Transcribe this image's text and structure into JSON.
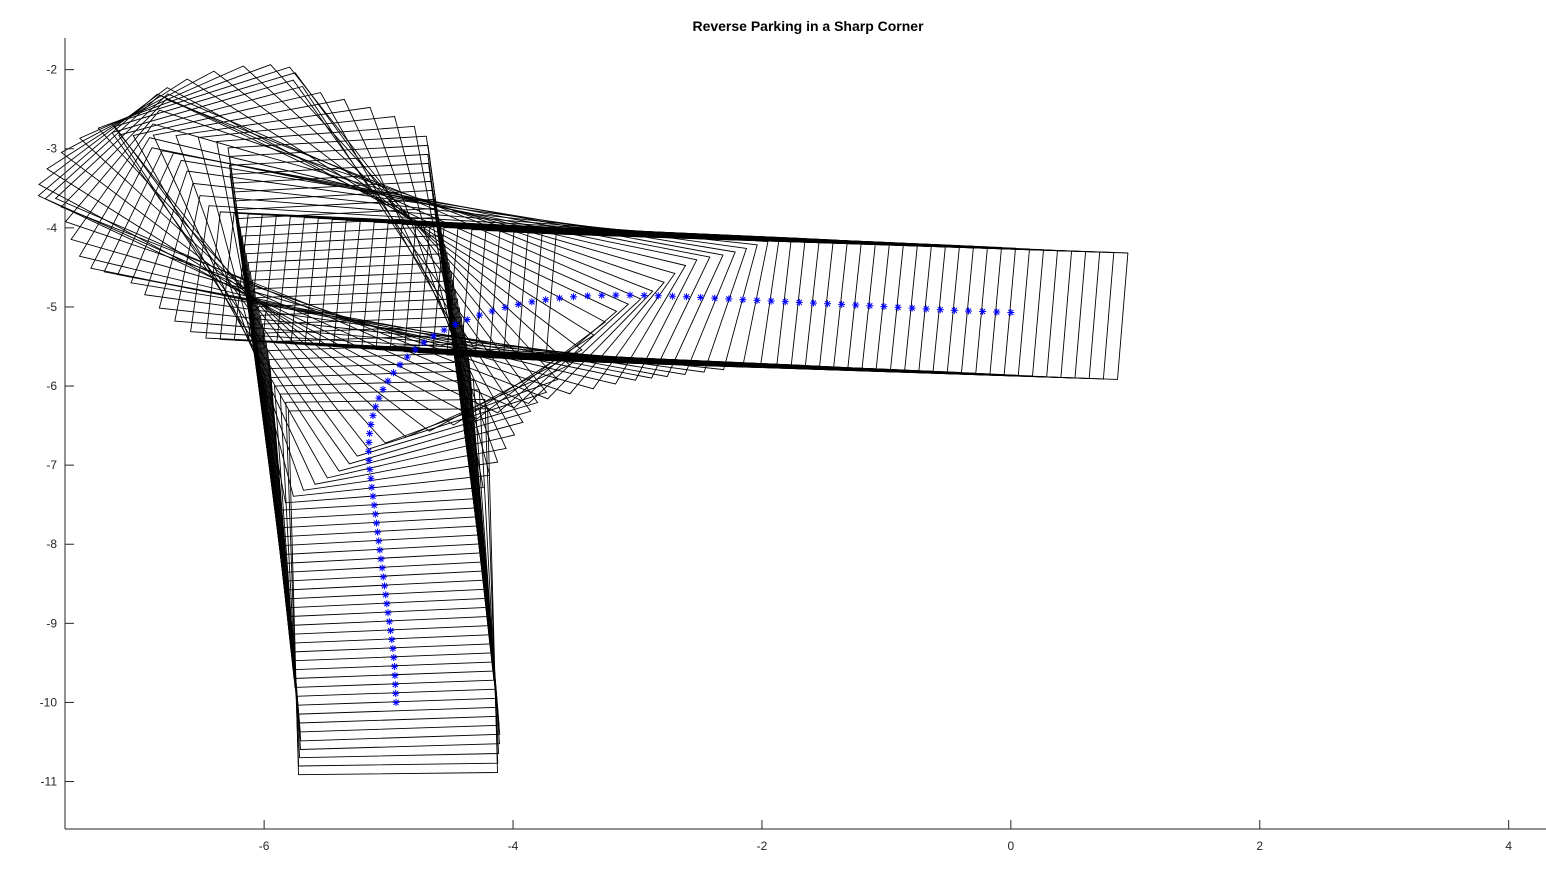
{
  "chart_data": {
    "type": "line",
    "title": "Reverse Parking in a Sharp Corner",
    "xlabel": "",
    "ylabel": "",
    "xlim": [
      -7.6,
      4.3
    ],
    "ylim": [
      -11.6,
      -1.6
    ],
    "xticks": [
      -6,
      -4,
      -2,
      0,
      2,
      4
    ],
    "yticks": [
      -2,
      -3,
      -4,
      -5,
      -6,
      -7,
      -8,
      -9,
      -10,
      -11
    ],
    "grid": false,
    "vehicle": {
      "length": 4.6,
      "width": 1.6,
      "rear_overhang": 0.9
    },
    "series": [
      {
        "style": "blue-star-markers",
        "path_waypoints": [
          [
            -4.94,
            -10.0
          ],
          [
            -4.96,
            -9.4
          ],
          [
            -5.01,
            -8.8
          ],
          [
            -5.06,
            -8.2
          ],
          [
            -5.1,
            -7.7
          ],
          [
            -5.14,
            -7.2
          ],
          [
            -5.16,
            -6.8
          ],
          [
            -5.13,
            -6.4
          ],
          [
            -5.03,
            -6.0
          ],
          [
            -4.86,
            -5.65
          ],
          [
            -4.62,
            -5.35
          ],
          [
            -4.3,
            -5.12
          ],
          [
            -3.9,
            -4.95
          ],
          [
            -3.4,
            -4.86
          ],
          [
            -2.8,
            -4.86
          ],
          [
            -2.0,
            -4.92
          ],
          [
            -1.2,
            -4.98
          ],
          [
            -0.5,
            -5.04
          ],
          [
            0.0,
            -5.07
          ]
        ],
        "headings_deg": [
          [
            0.0,
            91.0
          ],
          [
            0.05,
            93.0
          ],
          [
            0.35,
            95.0
          ],
          [
            0.45,
            115.0
          ],
          [
            0.55,
            145.0
          ],
          [
            0.63,
            163.0
          ],
          [
            0.72,
            176.0
          ],
          [
            1.0,
            177.0
          ]
        ]
      }
    ],
    "colors": {
      "path": "#0000ff",
      "vehicle": "#000000",
      "axis": "#262626"
    }
  }
}
